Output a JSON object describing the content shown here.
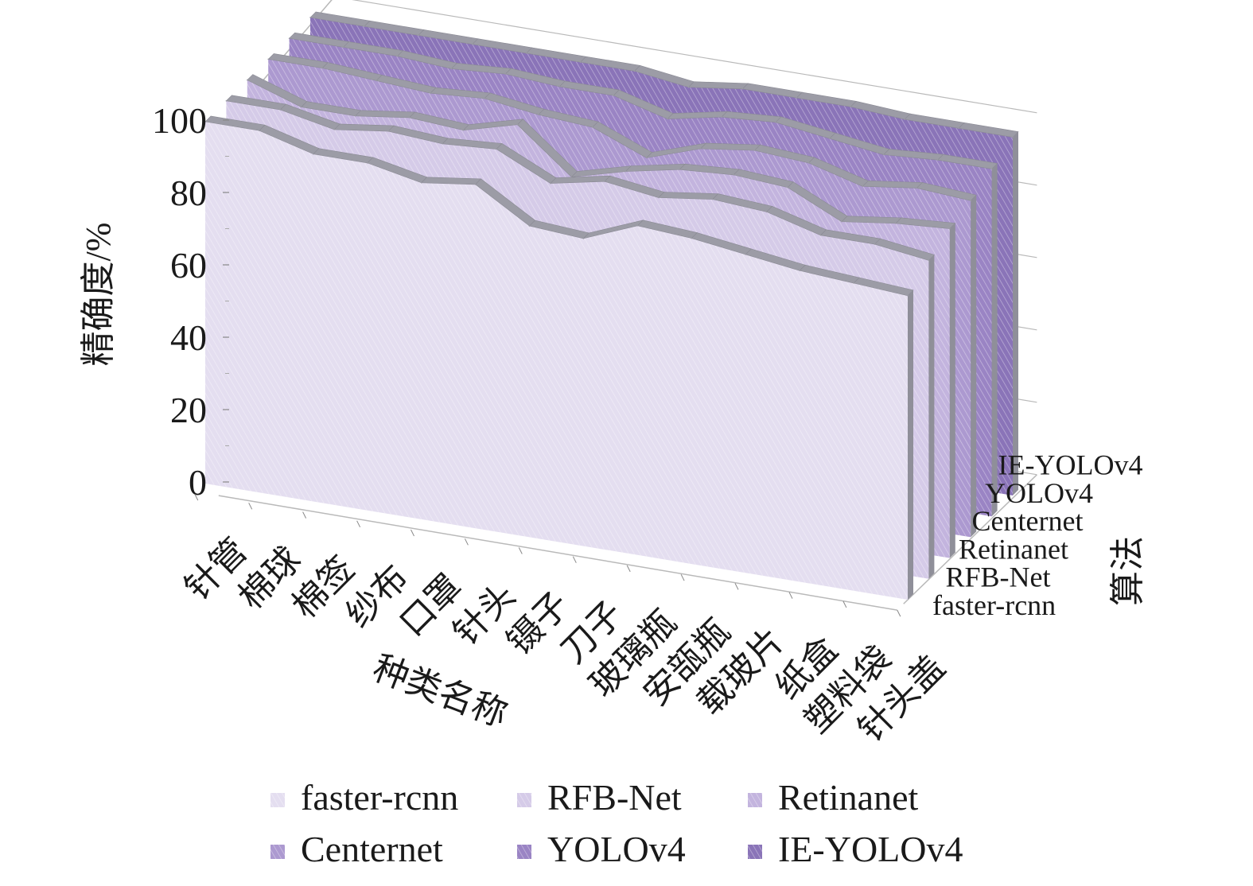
{
  "chart_data": {
    "type": "area",
    "subtype": "3d-stacked-ribbon",
    "title": "",
    "ylabel": "精确度/%",
    "xlabel": "种类名称",
    "zlabel": "算法",
    "ylim": [
      0,
      100
    ],
    "yticks": [
      "0",
      "20",
      "40",
      "60",
      "80",
      "100"
    ],
    "grid": true,
    "legend_position": "bottom",
    "categories": [
      "针管",
      "棉球",
      "棉签",
      "纱布",
      "口罩",
      "针头",
      "镊子",
      "刀子",
      "玻璃瓶",
      "安瓿瓶",
      "载玻片",
      "纸盒",
      "塑料袋",
      "针头盖"
    ],
    "series": [
      {
        "name": "faster-rcnn",
        "color": "#e4def0",
        "values": [
          100,
          100,
          96,
          96,
          93,
          95,
          86,
          85,
          91,
          90,
          88,
          86,
          85,
          84
        ]
      },
      {
        "name": "RFB-Net",
        "color": "#d5cbe8",
        "values": [
          100,
          100,
          97,
          99,
          98,
          99,
          92,
          95,
          93,
          95,
          94,
          90,
          90,
          88
        ]
      },
      {
        "name": "Retinanet",
        "color": "#c3b4de",
        "values": [
          100,
          95,
          95,
          97,
          96,
          100,
          88,
          92,
          95,
          96,
          95,
          88,
          90,
          91
        ]
      },
      {
        "name": "Centernet",
        "color": "#ac99d0",
        "values": [
          100,
          100,
          99,
          98,
          99,
          97,
          96,
          90,
          95,
          97,
          96,
          92,
          94,
          93
        ]
      },
      {
        "name": "YOLOv4",
        "color": "#9a84c4",
        "values": [
          100,
          100,
          100,
          99,
          100,
          99,
          99,
          95,
          98,
          99,
          97,
          95,
          96,
          96
        ]
      },
      {
        "name": "IE-YOLOv4",
        "color": "#8a74b8",
        "values": [
          100,
          100,
          100,
          100,
          100,
          100,
          100,
          98,
          100,
          100,
          100,
          99,
          99,
          99
        ]
      }
    ]
  }
}
